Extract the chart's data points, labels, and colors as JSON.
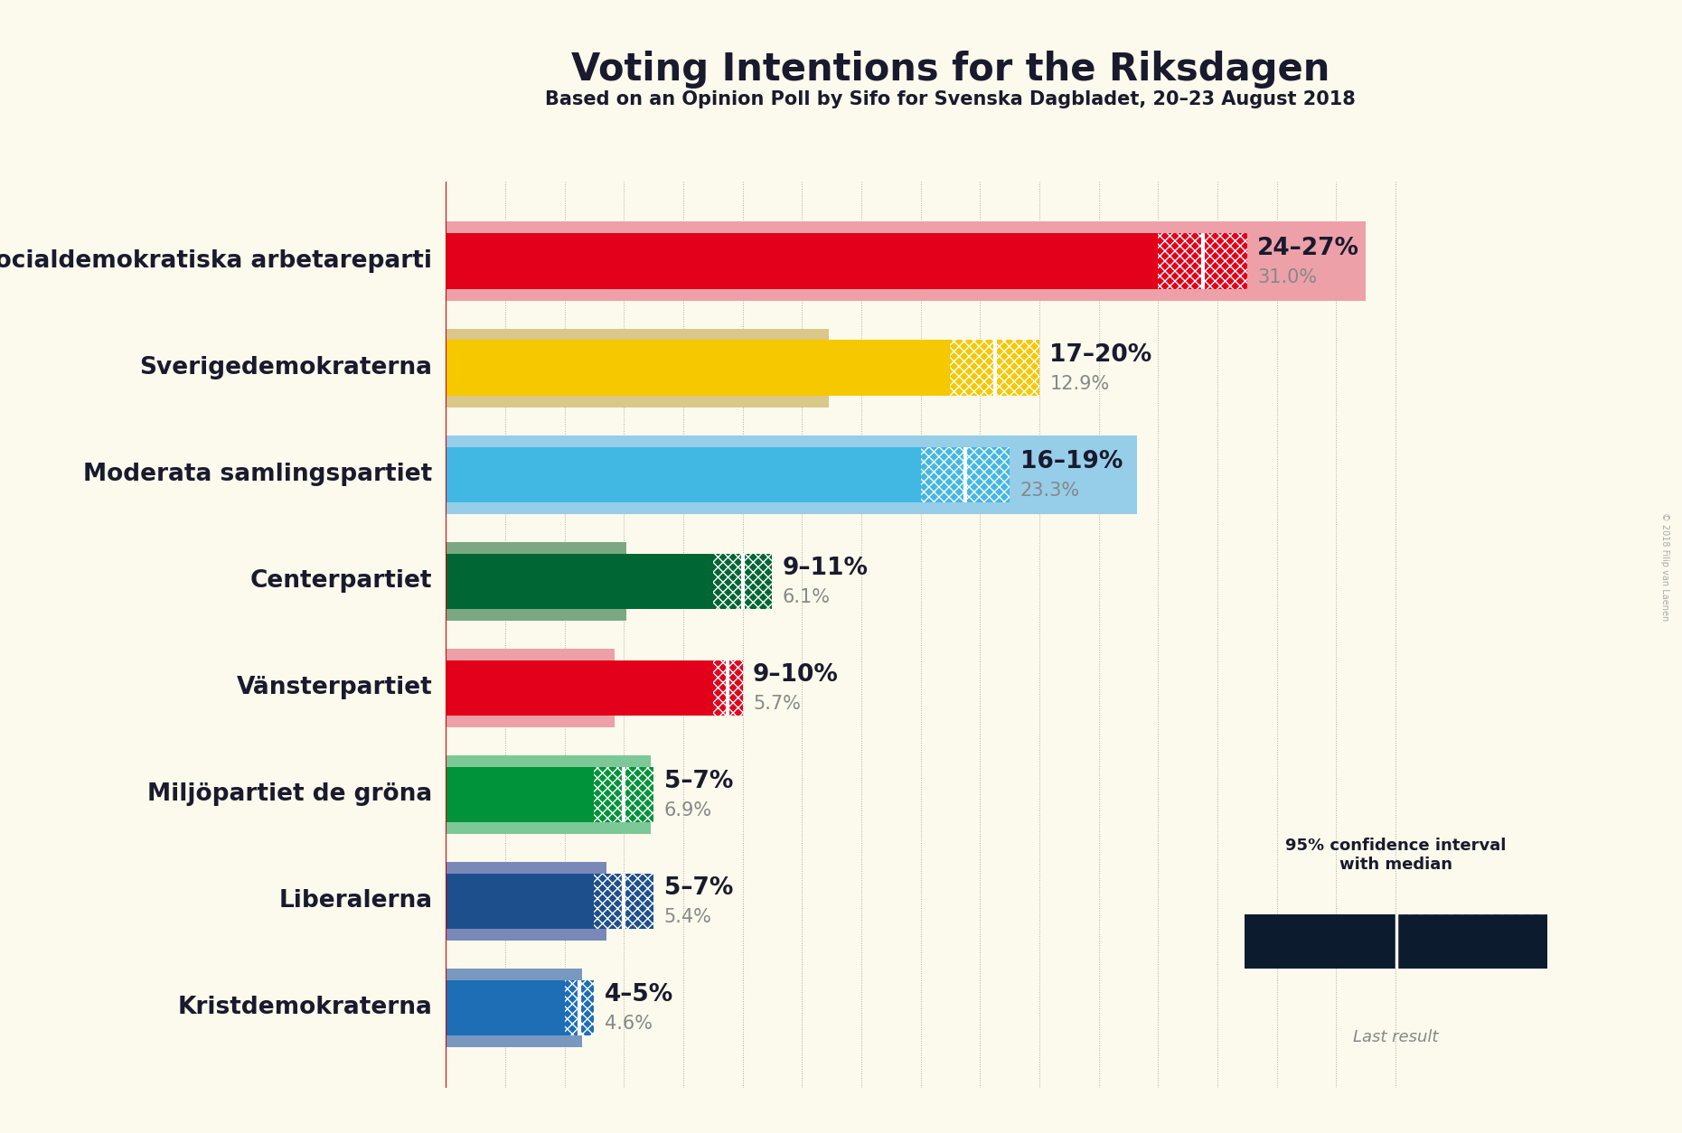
{
  "title": "Voting Intentions for the Riksdagen",
  "subtitle": "Based on an Opinion Poll by Sifo for Svenska Dagbladet, 20–23 August 2018",
  "background_color": "#FBFAEC",
  "parties": [
    "Sveriges socialdemokratiska arbetareparti",
    "Sverigedemokraterna",
    "Moderata samlingspartiet",
    "Centerpartiet",
    "Vänsterpartiet",
    "Miljöpartiet de gröna",
    "Liberalerna",
    "Kristdemokraterna"
  ],
  "ci_low": [
    24,
    17,
    16,
    9,
    9,
    5,
    5,
    4
  ],
  "ci_high": [
    27,
    20,
    19,
    11,
    10,
    7,
    7,
    5
  ],
  "ci_median": [
    25.5,
    18.5,
    17.5,
    10.0,
    9.5,
    6.0,
    6.0,
    4.5
  ],
  "last_result": [
    31.0,
    12.9,
    23.3,
    6.1,
    5.7,
    6.9,
    5.4,
    4.6
  ],
  "ci_labels": [
    "24–27%",
    "17–20%",
    "16–19%",
    "9–11%",
    "9–10%",
    "5–7%",
    "5–7%",
    "4–5%"
  ],
  "last_result_labels": [
    "31.0%",
    "12.9%",
    "23.3%",
    "6.1%",
    "5.7%",
    "6.9%",
    "5.4%",
    "4.6%"
  ],
  "colors": [
    "#E2001A",
    "#F5C800",
    "#41B8E4",
    "#006633",
    "#E2001A",
    "#00933A",
    "#1D4F8C",
    "#1D6EB5"
  ],
  "light_colors": [
    "#EDA0A8",
    "#D9C888",
    "#96CDE8",
    "#7BA882",
    "#EDA0A8",
    "#7CC896",
    "#7888B8",
    "#7898C0"
  ],
  "grid_color": "#999999",
  "title_fontsize": 30,
  "subtitle_fontsize": 15,
  "label_fontsize": 19,
  "value_fontsize": 19,
  "bar_height": 0.52,
  "last_bar_extra": 0.22,
  "xlim": [
    0,
    34
  ]
}
